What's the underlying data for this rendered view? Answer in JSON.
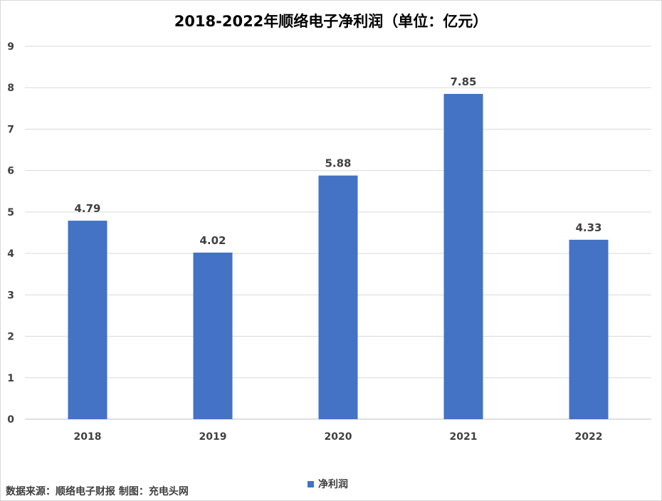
{
  "chart_data": {
    "type": "bar",
    "title": "2018-2022年顺络电子净利润（单位：亿元）",
    "categories": [
      "2018",
      "2019",
      "2020",
      "2021",
      "2022"
    ],
    "series": [
      {
        "name": "净利润",
        "values": [
          4.79,
          4.02,
          5.88,
          7.85,
          4.33
        ],
        "color": "#4472c4"
      }
    ],
    "data_labels": [
      "4.79",
      "4.02",
      "5.88",
      "7.85",
      "4.33"
    ],
    "ylim": [
      0,
      9
    ],
    "yticks": [
      "0",
      "1",
      "2",
      "3",
      "4",
      "5",
      "6",
      "7",
      "8",
      "9"
    ],
    "grid": true,
    "legend_position": "bottom"
  },
  "footer": {
    "source": "数据来源：顺络电子财报 制图：充电头网"
  }
}
